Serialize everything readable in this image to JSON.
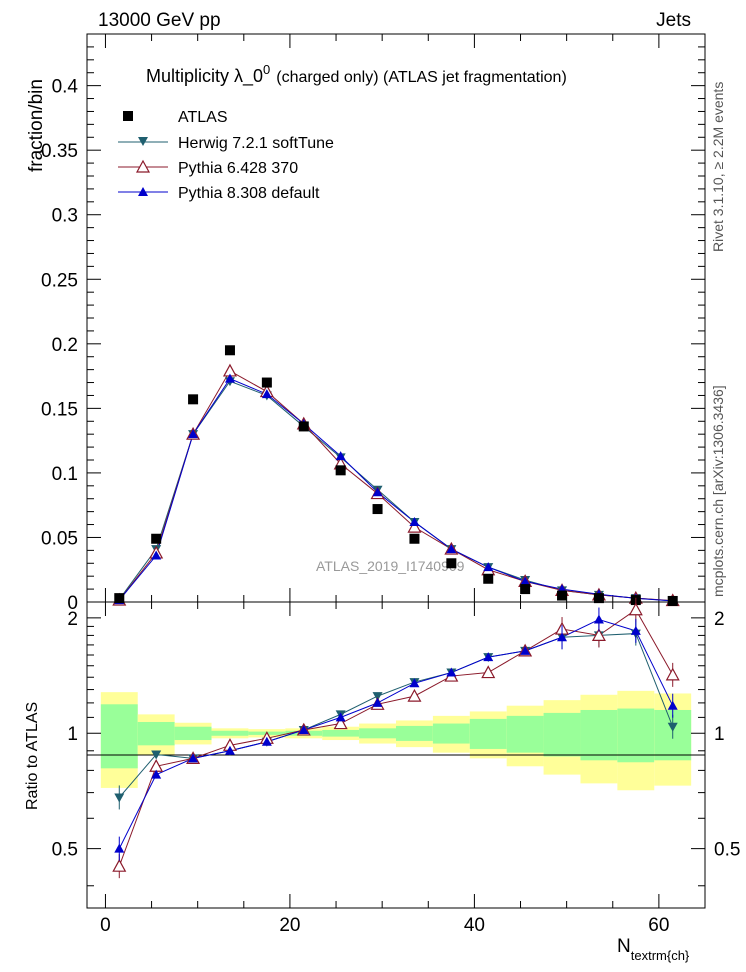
{
  "header": {
    "left": "13000 GeV pp",
    "right": "Jets",
    "side_top": "Rivet 3.1.10, ≥ 2.2M events",
    "side_bottom": "mcplots.cern.ch [arXiv:1306.3436]"
  },
  "chart_data": [
    {
      "type": "scatter",
      "title": "Multiplicity  λ_0",
      "title_sup": "0",
      "title_suffix": "(charged only) (ATLAS jet fragmentation)",
      "ylabel": "fraction/bin",
      "watermark": "ATLAS_2019_I1740909",
      "xlim": [
        -2,
        65
      ],
      "ylim": [
        0,
        0.44
      ],
      "y_ticks": [
        0,
        0.05,
        0.1,
        0.15,
        0.2,
        0.25,
        0.3,
        0.35,
        0.4
      ],
      "y_tick_labels": [
        "0",
        "0.05",
        "0.1",
        "0.15",
        "0.2",
        "0.25",
        "0.3",
        "0.35",
        "0.4"
      ],
      "legend_position": "top-left",
      "x": [
        1.5,
        5.5,
        9.5,
        13.5,
        17.5,
        21.5,
        25.5,
        29.5,
        33.5,
        37.5,
        41.5,
        45.5,
        49.5,
        53.5,
        57.5,
        61.5
      ],
      "series": [
        {
          "name": "ATLAS",
          "color": "#000000",
          "marker": "square",
          "values": [
            0.003,
            0.049,
            0.157,
            0.195,
            0.17,
            0.136,
            0.102,
            0.072,
            0.049,
            0.03,
            0.018,
            0.01,
            0.005,
            0.003,
            0.0015,
            0.0008
          ]
        },
        {
          "name": "Herwig 7.2.1 softTune",
          "color": "#1f5f6f",
          "marker": "triangle-down",
          "values": [
            0.002,
            0.041,
            0.13,
            0.171,
            0.16,
            0.136,
            0.112,
            0.087,
            0.062,
            0.041,
            0.027,
            0.017,
            0.009,
            0.0055,
            0.003,
            0.0009
          ]
        },
        {
          "name": "Pythia 6.428 370",
          "color": "#8b1a2b",
          "marker": "triangle-open",
          "values": [
            0.0015,
            0.038,
            0.13,
            0.179,
            0.163,
            0.138,
            0.107,
            0.084,
            0.058,
            0.041,
            0.025,
            0.016,
            0.009,
            0.0055,
            0.003,
            0.0011
          ]
        },
        {
          "name": "Pythia 8.308 default",
          "color": "#0000cc",
          "marker": "triangle-up",
          "values": [
            0.0015,
            0.036,
            0.13,
            0.173,
            0.161,
            0.138,
            0.113,
            0.085,
            0.062,
            0.041,
            0.027,
            0.016,
            0.01,
            0.006,
            0.0028,
            0.0009
          ]
        }
      ]
    },
    {
      "type": "line",
      "ylabel": "Ratio to ATLAS",
      "xlabel": "N",
      "xlabel_sub": "textrm{ch}",
      "xlim": [
        -2,
        65
      ],
      "ylim": [
        0.35,
        2.2
      ],
      "ylog": true,
      "x_ticks": [
        0,
        20,
        40,
        60
      ],
      "x_tick_labels": [
        "0",
        "20",
        "40",
        "60"
      ],
      "y_ticks": [
        0.5,
        1,
        2
      ],
      "y_tick_labels": [
        "0.5",
        "1",
        "2"
      ],
      "bins": [
        [
          -0.5,
          3.5
        ],
        [
          3.5,
          7.5
        ],
        [
          7.5,
          11.5
        ],
        [
          11.5,
          15.5
        ],
        [
          15.5,
          19.5
        ],
        [
          19.5,
          23.5
        ],
        [
          23.5,
          27.5
        ],
        [
          27.5,
          31.5
        ],
        [
          31.5,
          35.5
        ],
        [
          35.5,
          39.5
        ],
        [
          39.5,
          43.5
        ],
        [
          43.5,
          47.5
        ],
        [
          47.5,
          51.5
        ],
        [
          51.5,
          55.5
        ],
        [
          55.5,
          59.5
        ],
        [
          59.5,
          63.5
        ]
      ],
      "band_inner": [
        0.19,
        0.07,
        0.04,
        0.015,
        0.01,
        0.015,
        0.02,
        0.03,
        0.045,
        0.06,
        0.09,
        0.11,
        0.13,
        0.15,
        0.16,
        0.15
      ],
      "band_outer": [
        0.28,
        0.12,
        0.065,
        0.03,
        0.025,
        0.03,
        0.04,
        0.06,
        0.08,
        0.11,
        0.14,
        0.18,
        0.22,
        0.26,
        0.29,
        0.27
      ],
      "band_inner_color": "#99ff99",
      "band_outer_color": "#ffff99",
      "x": [
        1.5,
        5.5,
        9.5,
        13.5,
        17.5,
        21.5,
        25.5,
        29.5,
        33.5,
        37.5,
        41.5,
        45.5,
        49.5,
        53.5,
        57.5,
        61.5
      ],
      "series": [
        {
          "name": "Herwig 7.2.1 softTune",
          "color": "#1f5f6f",
          "marker": "triangle-down",
          "values": [
            0.68,
            0.88,
            0.86,
            0.9,
            0.95,
            1.02,
            1.12,
            1.25,
            1.36,
            1.44,
            1.58,
            1.64,
            1.78,
            1.8,
            1.82,
            1.04
          ]
        },
        {
          "name": "Pythia 6.428 370",
          "color": "#8b1a2b",
          "marker": "triangle-open",
          "values": [
            0.45,
            0.82,
            0.86,
            0.93,
            0.97,
            1.02,
            1.06,
            1.19,
            1.25,
            1.41,
            1.44,
            1.64,
            1.87,
            1.8,
            2.1,
            1.42
          ]
        },
        {
          "name": "Pythia 8.308 default",
          "color": "#0000cc",
          "marker": "triangle-up",
          "values": [
            0.5,
            0.78,
            0.86,
            0.9,
            0.95,
            1.02,
            1.1,
            1.2,
            1.35,
            1.44,
            1.58,
            1.64,
            1.78,
            1.98,
            1.85,
            1.18
          ]
        }
      ]
    }
  ]
}
